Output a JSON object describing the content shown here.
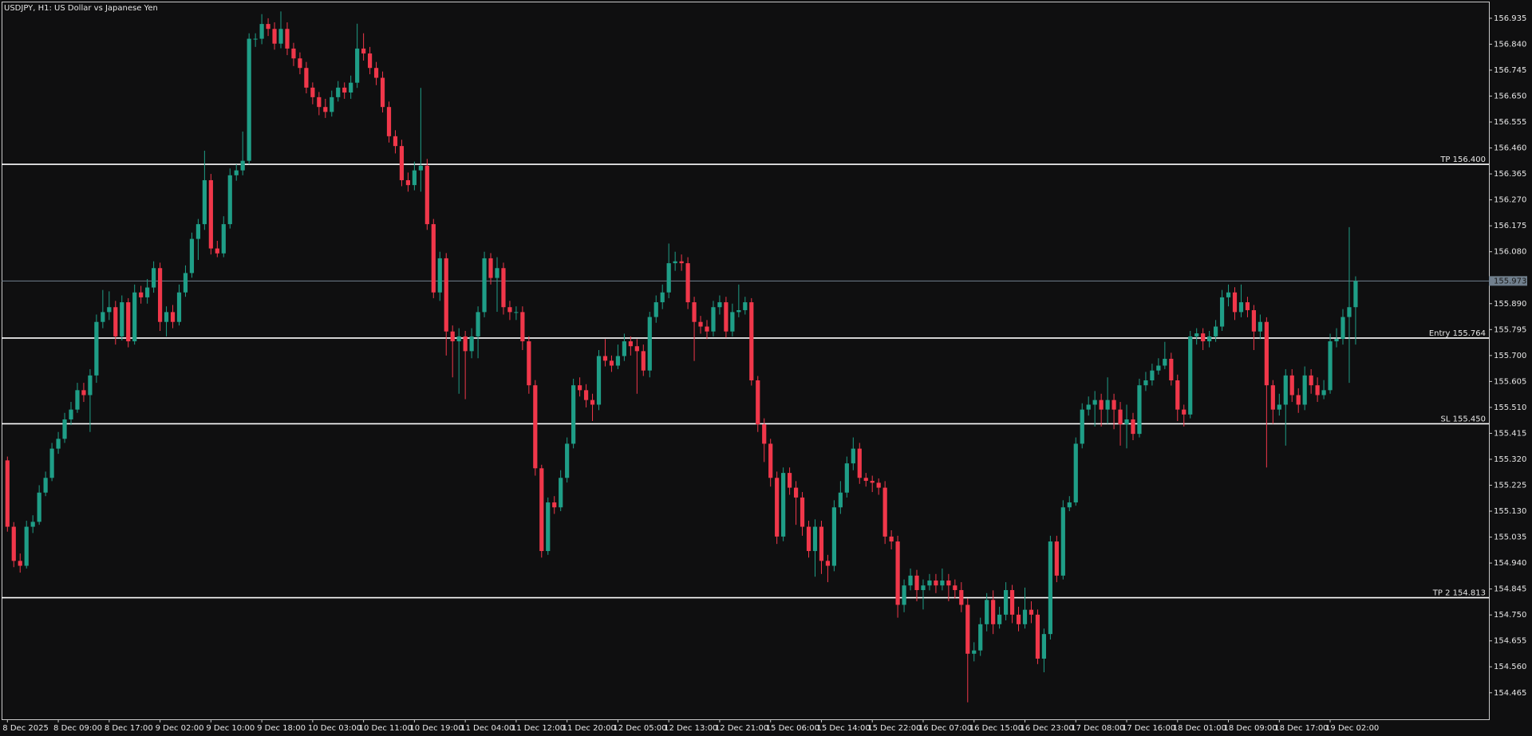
{
  "chart_data": {
    "type": "candlestick",
    "title": "USDJPY, H1:  US Dollar vs Japanese Yen",
    "categories": [
      "8 Dec 2025",
      null,
      null,
      null,
      null,
      null,
      null,
      null,
      "8 Dec 09:00",
      null,
      null,
      null,
      null,
      null,
      null,
      null,
      "8 Dec 17:00",
      null,
      null,
      null,
      null,
      null,
      null,
      null,
      "9 Dec 02:00",
      null,
      null,
      null,
      null,
      null,
      null,
      null,
      "9 Dec 10:00",
      null,
      null,
      null,
      null,
      null,
      null,
      null,
      "9 Dec 18:00",
      null,
      null,
      null,
      null,
      null,
      null,
      null,
      "10 Dec 03:00",
      null,
      null,
      null,
      null,
      null,
      null,
      null,
      "10 Dec 11:00",
      null,
      null,
      null,
      null,
      null,
      null,
      null,
      "10 Dec 19:00",
      null,
      null,
      null,
      null,
      null,
      null,
      null,
      "11 Dec 04:00",
      null,
      null,
      null,
      null,
      null,
      null,
      null,
      "11 Dec 12:00",
      null,
      null,
      null,
      null,
      null,
      null,
      null,
      "11 Dec 20:00",
      null,
      null,
      null,
      null,
      null,
      null,
      null,
      "12 Dec 05:00",
      null,
      null,
      null,
      null,
      null,
      null,
      null,
      "12 Dec 13:00",
      null,
      null,
      null,
      null,
      null,
      null,
      null,
      "12 Dec 21:00",
      null,
      null,
      null,
      null,
      null,
      null,
      null,
      "15 Dec 06:00",
      null,
      null,
      null,
      null,
      null,
      null,
      null,
      "15 Dec 14:00",
      null,
      null,
      null,
      null,
      null,
      null,
      null,
      "15 Dec 22:00",
      null,
      null,
      null,
      null,
      null,
      null,
      null,
      "16 Dec 07:00",
      null,
      null,
      null,
      null,
      null,
      null,
      null,
      "16 Dec 15:00",
      null,
      null,
      null,
      null,
      null,
      null,
      null,
      "16 Dec 23:00",
      null,
      null,
      null,
      null,
      null,
      null,
      null,
      "17 Dec 08:00",
      null,
      null,
      null,
      null,
      null,
      null,
      null,
      "17 Dec 16:00",
      null,
      null,
      null,
      null,
      null,
      null,
      null,
      "18 Dec 01:00",
      null,
      null,
      null,
      null,
      null,
      null,
      null,
      "18 Dec 09:00",
      null,
      null,
      null,
      null,
      null,
      null,
      null,
      "18 Dec 17:00",
      null,
      null,
      null,
      null,
      null,
      null,
      null,
      "19 Dec 02:00",
      null,
      null,
      null,
      null
    ],
    "open": [
      155.316,
      155.073,
      154.948,
      154.93,
      155.073,
      155.091,
      155.198,
      155.252,
      155.359,
      155.395,
      155.466,
      155.502,
      155.573,
      155.555,
      155.627,
      155.823,
      155.859,
      155.877,
      155.77,
      155.895,
      155.752,
      155.931,
      155.913,
      155.949,
      156.02,
      155.823,
      155.859,
      155.823,
      155.931,
      156.002,
      156.127,
      156.181,
      156.342,
      156.092,
      156.074,
      156.181,
      156.36,
      156.378,
      156.413,
      156.86,
      156.86,
      156.914,
      156.896,
      156.842,
      156.896,
      156.824,
      156.788,
      156.753,
      156.681,
      156.646,
      156.61,
      156.592,
      156.646,
      156.681,
      156.663,
      156.699,
      156.824,
      156.806,
      156.753,
      156.717,
      156.61,
      156.503,
      156.467,
      156.342,
      156.324,
      156.378,
      156.395,
      156.181,
      155.931,
      156.056,
      155.788,
      155.752,
      155.77,
      155.716,
      155.77,
      155.859,
      156.056,
      155.984,
      156.02,
      155.877,
      155.859,
      155.859,
      155.752,
      155.591,
      155.287,
      154.984,
      155.162,
      155.144,
      155.252,
      155.377,
      155.591,
      155.573,
      155.537,
      155.52,
      155.698,
      155.681,
      155.663,
      155.698,
      155.752,
      155.734,
      155.716,
      155.645,
      155.841,
      155.895,
      155.931,
      156.038,
      156.045,
      156.038,
      155.895,
      155.823,
      155.806,
      155.788,
      155.877,
      155.895,
      155.788,
      155.859,
      155.866,
      155.895,
      155.609,
      155.448,
      155.377,
      155.252,
      155.037,
      155.27,
      155.216,
      155.18,
      155.073,
      154.984,
      155.073,
      154.948,
      154.93,
      155.144,
      155.198,
      155.305,
      155.359,
      155.252,
      155.241,
      155.234,
      155.216,
      155.037,
      155.019,
      154.787,
      154.858,
      154.894,
      154.841,
      154.858,
      154.876,
      154.858,
      154.876,
      154.858,
      154.841,
      154.787,
      154.608,
      154.62,
      154.716,
      154.805,
      154.716,
      154.751,
      154.841,
      154.751,
      154.716,
      154.769,
      154.751,
      154.59,
      154.68,
      155.019,
      154.894,
      155.144,
      155.162,
      155.377,
      155.502,
      155.52,
      155.537,
      155.502,
      155.537,
      155.502,
      155.448,
      155.466,
      155.413,
      155.591,
      155.609,
      155.645,
      155.663,
      155.688,
      155.609,
      155.502,
      155.484,
      155.77,
      155.781,
      155.752,
      155.77,
      155.806,
      155.913,
      155.931,
      155.859,
      155.895,
      155.866,
      155.788,
      155.823,
      155.591,
      155.502,
      155.52,
      155.627,
      155.555,
      155.52,
      155.627,
      155.591,
      155.555,
      155.573,
      155.752,
      155.761,
      155.841,
      155.877
    ],
    "high": [
      155.33,
      155.09,
      154.975,
      155.095,
      155.115,
      155.225,
      155.275,
      155.38,
      155.42,
      155.49,
      155.53,
      155.6,
      155.6,
      155.65,
      155.85,
      155.94,
      155.935,
      155.9,
      155.92,
      155.91,
      155.96,
      155.955,
      155.98,
      156.045,
      156.04,
      155.88,
      155.885,
      155.96,
      156.03,
      156.15,
      156.2,
      156.45,
      156.365,
      156.12,
      156.21,
      156.385,
      156.4,
      156.52,
      156.88,
      156.88,
      156.95,
      156.935,
      156.92,
      156.96,
      156.92,
      156.845,
      156.81,
      156.775,
      156.7,
      156.665,
      156.64,
      156.67,
      156.705,
      156.7,
      156.725,
      156.915,
      156.88,
      156.83,
      156.775,
      156.74,
      156.63,
      156.525,
      156.49,
      156.37,
      156.41,
      156.68,
      156.42,
      156.2,
      156.08,
      156.075,
      155.81,
      155.8,
      155.79,
      155.8,
      155.88,
      156.08,
      156.075,
      156.06,
      156.04,
      155.9,
      155.88,
      155.88,
      155.77,
      155.61,
      155.3,
      155.18,
      155.185,
      155.28,
      155.4,
      155.615,
      155.62,
      155.595,
      155.56,
      155.72,
      155.76,
      155.7,
      155.74,
      155.78,
      155.77,
      155.76,
      155.74,
      155.86,
      155.92,
      155.96,
      156.11,
      156.08,
      156.07,
      156.06,
      155.915,
      155.845,
      155.83,
      155.9,
      155.92,
      155.915,
      155.89,
      155.96,
      155.915,
      155.91,
      155.625,
      155.47,
      155.395,
      155.275,
      155.29,
      155.29,
      155.24,
      155.2,
      155.095,
      155.1,
      155.095,
      154.97,
      155.17,
      155.24,
      155.33,
      155.4,
      155.38,
      155.27,
      155.26,
      155.25,
      155.24,
      155.06,
      155.04,
      154.88,
      154.92,
      154.915,
      154.88,
      154.9,
      154.9,
      154.92,
      154.9,
      154.88,
      154.87,
      154.81,
      154.65,
      154.74,
      154.83,
      154.84,
      154.78,
      154.87,
      154.86,
      154.78,
      154.85,
      154.8,
      154.77,
      154.7,
      155.04,
      155.04,
      155.17,
      155.185,
      155.4,
      155.525,
      155.55,
      155.57,
      155.56,
      155.62,
      155.56,
      155.53,
      155.52,
      155.49,
      155.615,
      155.64,
      155.67,
      155.69,
      155.75,
      155.71,
      155.63,
      155.52,
      155.79,
      155.8,
      155.8,
      155.79,
      155.83,
      155.94,
      155.96,
      155.95,
      155.96,
      155.915,
      155.885,
      155.85,
      155.84,
      155.61,
      155.56,
      155.65,
      155.65,
      155.58,
      155.66,
      155.65,
      155.62,
      155.61,
      155.78,
      155.8,
      155.87,
      156.17,
      155.99
    ],
    "low": [
      155.055,
      154.925,
      154.905,
      154.92,
      155.05,
      155.08,
      155.185,
      155.24,
      155.34,
      155.38,
      155.445,
      155.49,
      155.53,
      155.42,
      155.6,
      155.8,
      155.83,
      155.74,
      155.755,
      155.73,
      155.74,
      155.89,
      155.89,
      155.93,
      155.79,
      155.77,
      155.8,
      155.81,
      155.915,
      155.985,
      156.05,
      156.16,
      156.07,
      156.06,
      156.06,
      156.165,
      156.34,
      156.36,
      156.4,
      156.83,
      156.84,
      156.87,
      156.82,
      156.825,
      156.8,
      156.76,
      156.73,
      156.66,
      156.62,
      156.58,
      156.57,
      156.575,
      156.63,
      156.64,
      156.64,
      156.68,
      156.78,
      156.73,
      156.69,
      156.59,
      156.48,
      156.44,
      156.32,
      156.3,
      156.305,
      156.3,
      156.16,
      155.91,
      155.9,
      155.7,
      155.62,
      155.56,
      155.54,
      155.69,
      155.69,
      155.84,
      155.96,
      155.86,
      155.85,
      155.83,
      155.83,
      155.72,
      155.56,
      155.26,
      154.96,
      154.97,
      155.12,
      155.13,
      155.235,
      155.36,
      155.55,
      155.51,
      155.46,
      155.5,
      155.66,
      155.64,
      155.65,
      155.68,
      155.7,
      155.56,
      155.625,
      155.62,
      155.82,
      155.87,
      155.91,
      156.01,
      156.01,
      155.87,
      155.68,
      155.78,
      155.76,
      155.77,
      155.85,
      155.765,
      155.77,
      155.84,
      155.85,
      155.59,
      155.42,
      155.31,
      155.22,
      155.01,
      155.02,
      155.19,
      155.08,
      155.04,
      154.96,
      154.89,
      154.9,
      154.87,
      154.91,
      155.12,
      155.18,
      155.28,
      155.23,
      155.22,
      155.2,
      155.19,
      155.01,
      154.99,
      154.74,
      154.76,
      154.84,
      154.8,
      154.77,
      154.84,
      154.83,
      154.84,
      154.8,
      154.81,
      154.76,
      154.43,
      154.58,
      154.6,
      154.69,
      154.68,
      154.7,
      154.73,
      154.72,
      154.69,
      154.7,
      154.72,
      154.57,
      154.54,
      154.66,
      154.87,
      154.88,
      155.13,
      155.15,
      155.36,
      155.48,
      155.44,
      155.44,
      155.45,
      155.43,
      155.37,
      155.36,
      155.39,
      155.4,
      155.57,
      155.59,
      155.63,
      155.65,
      155.59,
      155.46,
      155.44,
      155.47,
      155.74,
      155.72,
      155.73,
      155.75,
      155.79,
      155.88,
      155.83,
      155.84,
      155.84,
      155.72,
      155.76,
      155.29,
      155.45,
      155.48,
      155.37,
      155.53,
      155.49,
      155.5,
      155.56,
      155.53,
      155.54,
      155.56,
      155.73,
      155.74,
      155.6,
      155.74
    ],
    "close": [
      155.073,
      154.948,
      154.93,
      155.073,
      155.091,
      155.198,
      155.252,
      155.359,
      155.395,
      155.466,
      155.502,
      155.573,
      155.555,
      155.627,
      155.823,
      155.859,
      155.877,
      155.77,
      155.895,
      155.752,
      155.931,
      155.913,
      155.949,
      156.02,
      155.823,
      155.859,
      155.823,
      155.931,
      156.002,
      156.127,
      156.181,
      156.342,
      156.092,
      156.074,
      156.181,
      156.36,
      156.378,
      156.413,
      156.86,
      156.86,
      156.914,
      156.896,
      156.842,
      156.896,
      156.824,
      156.788,
      156.753,
      156.681,
      156.646,
      156.61,
      156.592,
      156.646,
      156.681,
      156.663,
      156.699,
      156.824,
      156.806,
      156.753,
      156.717,
      156.61,
      156.503,
      156.467,
      156.342,
      156.324,
      156.378,
      156.395,
      156.181,
      155.931,
      156.056,
      155.788,
      155.752,
      155.77,
      155.716,
      155.77,
      155.859,
      156.056,
      155.984,
      156.02,
      155.877,
      155.859,
      155.859,
      155.752,
      155.591,
      155.287,
      154.984,
      155.162,
      155.144,
      155.252,
      155.377,
      155.591,
      155.573,
      155.537,
      155.52,
      155.698,
      155.681,
      155.663,
      155.698,
      155.752,
      155.734,
      155.716,
      155.645,
      155.841,
      155.895,
      155.931,
      156.038,
      156.045,
      156.038,
      155.895,
      155.823,
      155.806,
      155.788,
      155.877,
      155.895,
      155.788,
      155.859,
      155.866,
      155.895,
      155.609,
      155.448,
      155.377,
      155.252,
      155.037,
      155.27,
      155.216,
      155.18,
      155.073,
      154.984,
      155.073,
      154.948,
      154.93,
      155.144,
      155.198,
      155.305,
      155.359,
      155.252,
      155.241,
      155.234,
      155.216,
      155.037,
      155.019,
      154.787,
      154.858,
      154.894,
      154.841,
      154.858,
      154.876,
      154.858,
      154.876,
      154.858,
      154.841,
      154.787,
      154.608,
      154.62,
      154.716,
      154.805,
      154.716,
      154.751,
      154.841,
      154.751,
      154.716,
      154.769,
      154.751,
      154.59,
      154.68,
      155.019,
      154.894,
      155.144,
      155.162,
      155.377,
      155.502,
      155.52,
      155.537,
      155.502,
      155.537,
      155.502,
      155.448,
      155.466,
      155.413,
      155.591,
      155.609,
      155.645,
      155.663,
      155.688,
      155.609,
      155.502,
      155.484,
      155.77,
      155.781,
      155.752,
      155.77,
      155.806,
      155.913,
      155.931,
      155.859,
      155.895,
      155.866,
      155.788,
      155.823,
      155.591,
      155.502,
      155.52,
      155.627,
      155.555,
      155.52,
      155.627,
      155.591,
      155.555,
      155.573,
      155.752,
      155.761,
      155.841,
      155.877,
      155.973
    ],
    "up_color": "#1f9e87",
    "down_color": "#f0374a",
    "ylim": [
      154.368,
      156.996
    ],
    "yticks": [
      156.935,
      {
        "value": 156.84,
        "label": "156.840"
      },
      156.745,
      {
        "value": 156.65,
        "label": "156.650"
      },
      156.555,
      {
        "value": 156.46,
        "label": "156.460"
      },
      156.365,
      {
        "value": 156.27,
        "label": "156.270"
      },
      156.175,
      {
        "value": 156.08,
        "label": "156.080"
      },
      {
        "value": 155.89,
        "label": "155.890"
      },
      155.795,
      {
        "value": 155.7,
        "label": "155.700"
      },
      155.605,
      {
        "value": 155.51,
        "label": "155.510"
      },
      155.415,
      {
        "value": 155.32,
        "label": "155.320"
      },
      155.225,
      {
        "value": 155.13,
        "label": "155.130"
      },
      155.035,
      {
        "value": 154.94,
        "label": "154.940"
      },
      154.845,
      {
        "value": 154.75,
        "label": "154.750"
      },
      154.655,
      {
        "value": 154.56,
        "label": "154.560"
      },
      154.465
    ],
    "levels": [
      {
        "label": "TP 156.400",
        "value": 156.4,
        "color": "#ffffff"
      },
      {
        "label": "Entry 155.764",
        "value": 155.764,
        "color": "#ffffff"
      },
      {
        "label": "SL 155.450",
        "value": 155.45,
        "color": "#ffffff"
      },
      {
        "label": "TP 2 154.813",
        "value": 154.813,
        "color": "#ffffff"
      }
    ],
    "last_price": {
      "value": 155.973,
      "color": "#71808e"
    }
  }
}
